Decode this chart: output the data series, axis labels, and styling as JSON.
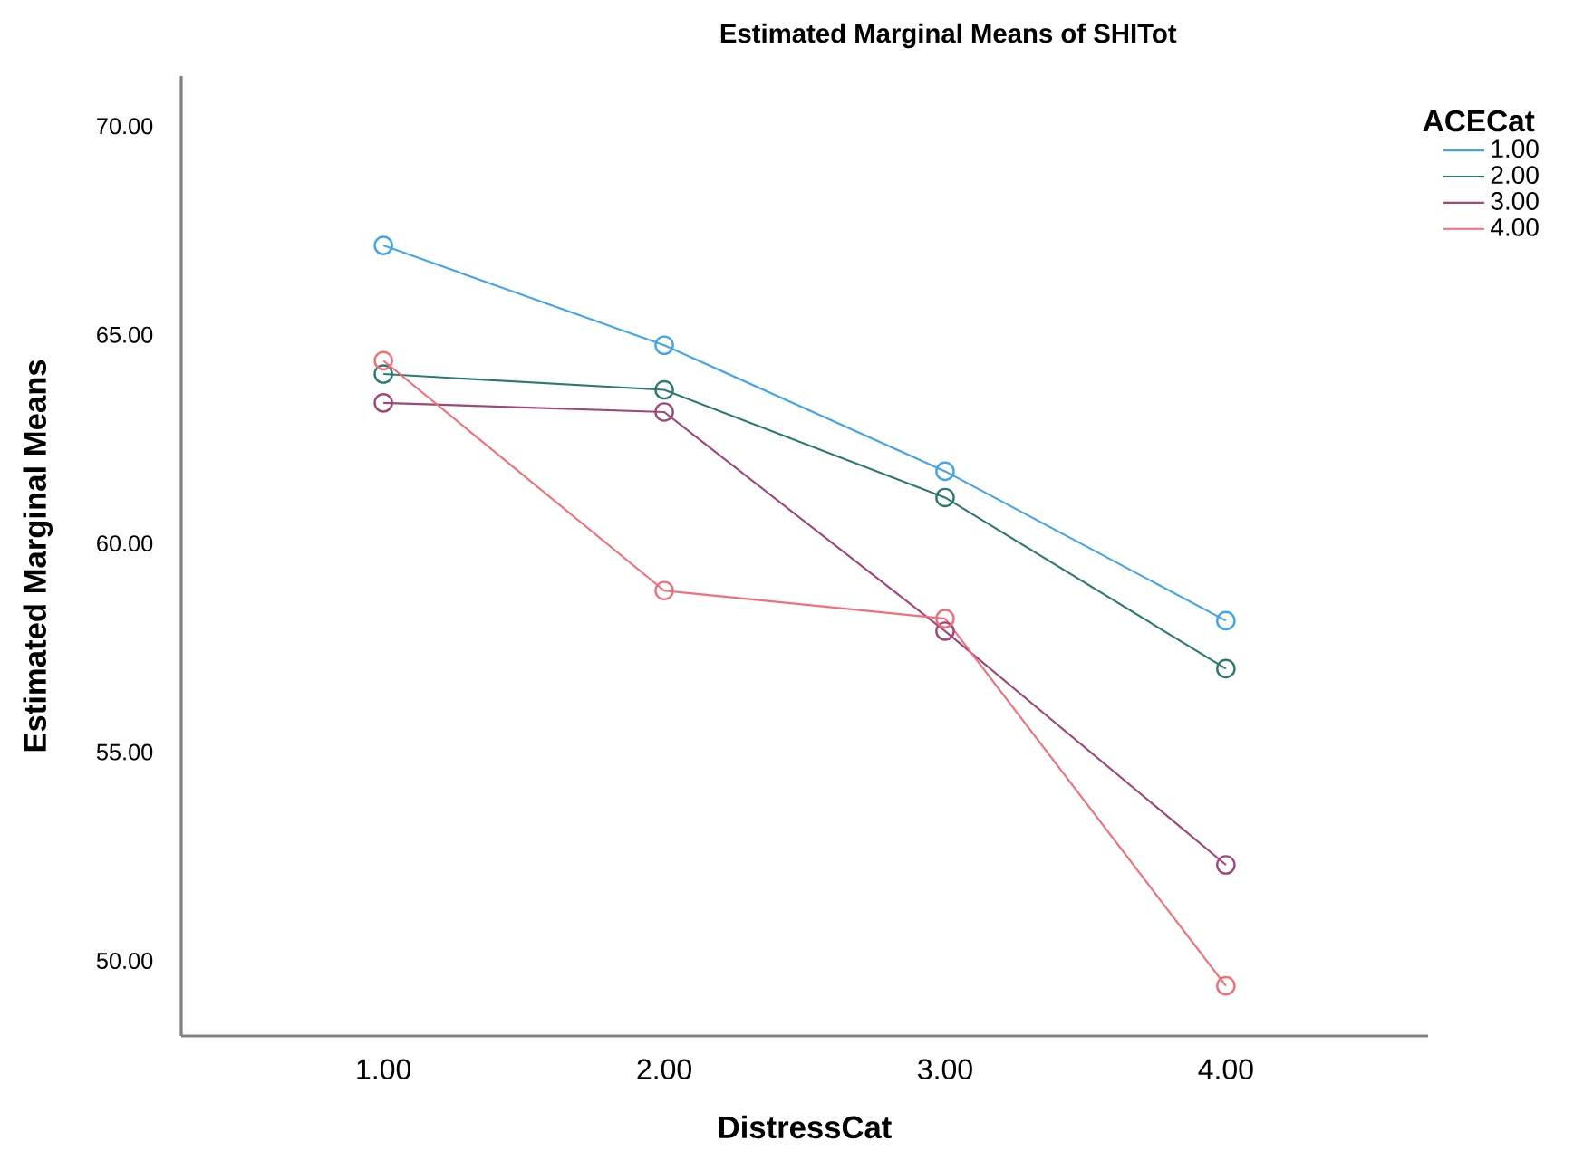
{
  "chart_data": {
    "type": "line",
    "title": "Estimated Marginal Means of SHITot",
    "xlabel": "DistressCat",
    "ylabel": "Estimated Marginal Means",
    "legend_title": "ACECat",
    "categories": [
      "1.00",
      "2.00",
      "3.00",
      "4.00"
    ],
    "series": [
      {
        "name": "1.00",
        "color": "#42a5ea",
        "values": [
          67.14,
          64.75,
          61.73,
          58.15
        ]
      },
      {
        "name": "2.00",
        "color": "#2b7a72",
        "values": [
          64.06,
          63.68,
          61.1,
          57.0
        ]
      },
      {
        "name": "3.00",
        "color": "#a0467a",
        "values": [
          63.37,
          63.15,
          57.9,
          52.3
        ]
      },
      {
        "name": "4.00",
        "color": "#f46e78",
        "values": [
          64.38,
          58.87,
          58.2,
          49.4
        ]
      }
    ],
    "ylim": [
      48.2,
      71.2
    ],
    "yticks": [
      {
        "value": 50,
        "label": "50.00"
      },
      {
        "value": 55,
        "label": "55.00"
      },
      {
        "value": 60,
        "label": "60.00"
      },
      {
        "value": 65,
        "label": "65.00"
      },
      {
        "value": 70,
        "label": "70.00"
      }
    ],
    "grid": false,
    "legend": "top right",
    "marker": "circle",
    "line_style": "solid"
  }
}
